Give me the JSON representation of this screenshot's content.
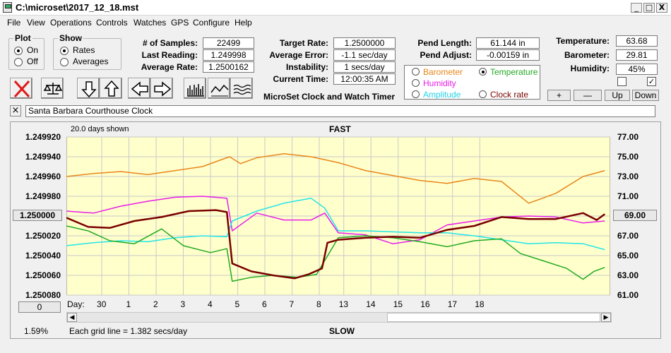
{
  "window": {
    "title": "C:\\microset\\2017_12_18.mst",
    "min": "_",
    "max": "□",
    "close": "X"
  },
  "menu": [
    "File",
    "View",
    "Operations",
    "Controls",
    "Watches",
    "GPS",
    "Configure",
    "Help"
  ],
  "plot_group": {
    "title": "Plot",
    "on": "On",
    "off": "Off"
  },
  "show_group": {
    "title": "Show",
    "rates": "Rates",
    "averages": "Averages"
  },
  "stats": {
    "samples_label": "# of Samples:",
    "samples": "22499",
    "last_label": "Last Reading:",
    "last": "1.249998",
    "avg_label": "Average Rate:",
    "avg": "1.2500162",
    "target_label": "Target Rate:",
    "target": "1.2500000",
    "err_label": "Average Error:",
    "err": "-1.1 sec/day",
    "inst_label": "Instability:",
    "inst": "1 secs/day",
    "time_label": "Current Time:",
    "time": "12:00:35 AM",
    "pend_len_label": "Pend Length:",
    "pend_len": "61.144 in",
    "pend_adj_label": "Pend Adjust:",
    "pend_adj": "-0.00159 in",
    "temp_label": "Temperature:",
    "temp": "63.68",
    "baro_label": "Barometer:",
    "baro": "29.81",
    "hum_label": "Humidity:",
    "hum": "45%"
  },
  "app_name": "MicroSet Clock and Watch Timer",
  "legend": {
    "barometer": "Barometer",
    "temperature": "Temperature",
    "humidity": "Humidity",
    "amplitude": "Amplitude",
    "clock_rate": "Clock rate"
  },
  "steppers": {
    "plus": "+",
    "minus": "—",
    "up": "Up",
    "down": "Down"
  },
  "clock_name": "Santa Barbara Courthouse Clock",
  "close_x": "×",
  "colors": {
    "plot_bg": "#ffffcc",
    "barometer": "#e8861a",
    "temperature": "#22aa22",
    "humidity": "#e81ee8",
    "amplitude": "#22e4e8",
    "rate": "#7a0000",
    "grid": "#c9c9c9"
  },
  "chart_data": {
    "type": "line",
    "top_label": "FAST",
    "bottom_label": "SLOW",
    "days_shown": "20.0 days shown",
    "grid_note": "Each grid line = 1.382 secs/day",
    "left_ticks": [
      "1.249920",
      "1.249940",
      "1.249960",
      "1.249980",
      "1.250000",
      "1.250020",
      "1.250040",
      "1.250060",
      "1.250080"
    ],
    "right_ticks": [
      "77.00",
      "75.00",
      "73.00",
      "71.00",
      "69.00",
      "67.00",
      "65.00",
      "63.00",
      "61.00"
    ],
    "ylim_left": [
      1.24992,
      1.25008
    ],
    "ylim_right": [
      61,
      77
    ],
    "left_button": "1.250000",
    "right_button": "69.00",
    "bottom_button": "0",
    "percent": "1.59%",
    "day_label": "Day:",
    "days": [
      "30",
      "1",
      "2",
      "3",
      "4",
      "5",
      "6",
      "7",
      "8",
      "13",
      "14",
      "15",
      "16",
      "17",
      "18"
    ],
    "series": [
      {
        "name": "Barometer",
        "color": "#e8861a",
        "x": [
          0,
          1,
          2,
          3,
          4,
          5,
          6,
          6.4,
          7,
          8,
          9,
          10,
          11,
          12,
          13,
          14,
          15,
          16,
          17,
          18,
          19,
          19.8
        ],
        "y": [
          73.0,
          73.3,
          73.5,
          73.2,
          73.6,
          74.0,
          75.0,
          74.3,
          74.9,
          75.3,
          75.0,
          74.4,
          73.6,
          73.1,
          72.6,
          72.3,
          72.8,
          72.5,
          70.3,
          71.3,
          73.0,
          73.6
        ]
      },
      {
        "name": "Humidity",
        "color": "#e81ee8",
        "x": [
          0,
          1,
          2,
          3,
          4,
          5,
          5.9,
          6.1,
          7,
          8,
          9,
          9.5,
          10,
          11,
          12,
          13,
          14,
          15,
          16,
          17,
          18,
          19,
          19.8
        ],
        "y": [
          69.5,
          69.3,
          70.0,
          70.5,
          70.9,
          71.0,
          70.8,
          67.5,
          69.3,
          68.6,
          68.6,
          69.3,
          67.3,
          67.1,
          66.2,
          66.6,
          68.1,
          68.5,
          68.9,
          69.0,
          68.9,
          68.3,
          68.5
        ]
      },
      {
        "name": "Amplitude",
        "color": "#22e4e8",
        "x": [
          0,
          1,
          2,
          3,
          4,
          5,
          5.9,
          6.1,
          7,
          8,
          9,
          9.5,
          10,
          11,
          12,
          13,
          14,
          15,
          16,
          17,
          18,
          19,
          19.8
        ],
        "y": [
          66.0,
          66.3,
          66.5,
          66.4,
          66.8,
          67.0,
          66.9,
          68.5,
          69.5,
          70.3,
          70.8,
          69.8,
          67.5,
          67.5,
          67.4,
          67.3,
          67.3,
          67.0,
          66.6,
          66.2,
          66.3,
          66.2,
          65.6
        ]
      },
      {
        "name": "Temperature",
        "color": "#22aa22",
        "x": [
          0,
          0.8,
          1.6,
          2.5,
          3.5,
          4.3,
          5.3,
          5.9,
          6.1,
          6.8,
          7.6,
          8.5,
          9.2,
          9.5,
          10,
          11,
          12,
          13,
          14,
          15,
          16,
          16.7,
          17.5,
          18.4,
          19,
          19.4,
          19.8
        ],
        "y": [
          68.0,
          67.5,
          66.5,
          66.2,
          67.7,
          66.0,
          65.3,
          65.7,
          62.4,
          62.8,
          63.0,
          62.8,
          63.1,
          64.5,
          66.8,
          67.0,
          66.8,
          66.4,
          65.9,
          66.5,
          66.7,
          65.2,
          64.5,
          63.7,
          62.6,
          63.4,
          63.8
        ]
      },
      {
        "name": "Clock rate",
        "color": "#7a0000",
        "x": [
          0,
          0.8,
          1.6,
          2.5,
          3.5,
          4.5,
          5.5,
          5.9,
          6.1,
          6.8,
          7.6,
          8.4,
          8.9,
          9.4,
          9.6,
          10,
          11,
          12,
          13,
          14,
          15,
          16,
          17,
          18,
          19,
          19.5,
          19.8
        ],
        "y": [
          1.2500017,
          1.250011,
          1.250012,
          1.250005,
          1.250001,
          1.249995,
          1.249994,
          1.249996,
          1.250048,
          1.250056,
          1.25006,
          1.250063,
          1.250059,
          1.250053,
          1.250027,
          1.250024,
          1.250022,
          1.250021,
          1.250022,
          1.250014,
          1.25001,
          1.250001,
          1.250003,
          1.250003,
          1.249997,
          1.250004,
          1.249998
        ]
      }
    ]
  }
}
